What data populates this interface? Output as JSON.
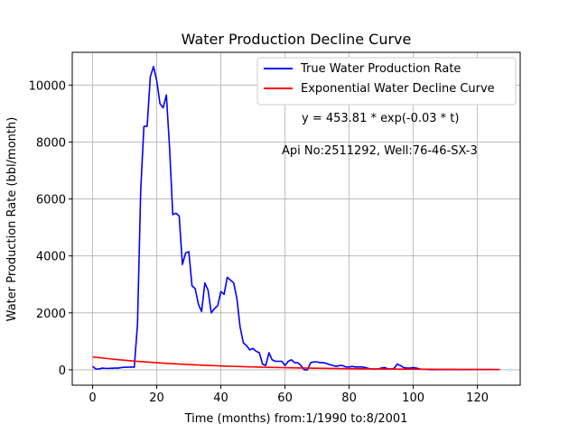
{
  "chart_data": {
    "type": "line",
    "title": "Water Production Decline Curve",
    "xlabel": "Time (months) from:1/1990 to:8/2001",
    "ylabel": "Water Production Rate (bbl/month)",
    "xlim": [
      -6.35,
      133.35
    ],
    "ylim": [
      -540,
      11150
    ],
    "xticks": [
      0,
      20,
      40,
      60,
      80,
      100,
      120
    ],
    "yticks": [
      0,
      2000,
      4000,
      6000,
      8000,
      10000
    ],
    "grid": true,
    "legend_position": "top-right",
    "annotations": [
      "y = 453.81 * exp(-0.03 * t)",
      "Api No:2511292, Well:76-46-SX-3"
    ],
    "series": [
      {
        "name": "True Water Production Rate",
        "color": "#0000ff",
        "points": [
          [
            0,
            120
          ],
          [
            1,
            30
          ],
          [
            2,
            30
          ],
          [
            3,
            60
          ],
          [
            4,
            50
          ],
          [
            5,
            50
          ],
          [
            6,
            55
          ],
          [
            7,
            60
          ],
          [
            8,
            60
          ],
          [
            9,
            80
          ],
          [
            10,
            90
          ],
          [
            11,
            90
          ],
          [
            12,
            100
          ],
          [
            13,
            90
          ],
          [
            14,
            1600
          ],
          [
            15,
            6300
          ],
          [
            16,
            8550
          ],
          [
            17,
            8550
          ],
          [
            18,
            10300
          ],
          [
            19,
            10650
          ],
          [
            20,
            10150
          ],
          [
            21,
            9350
          ],
          [
            22,
            9200
          ],
          [
            23,
            9650
          ],
          [
            24,
            7800
          ],
          [
            25,
            5450
          ],
          [
            26,
            5500
          ],
          [
            27,
            5400
          ],
          [
            28,
            3700
          ],
          [
            29,
            4100
          ],
          [
            30,
            4150
          ],
          [
            31,
            2950
          ],
          [
            32,
            2850
          ],
          [
            33,
            2300
          ],
          [
            34,
            2050
          ],
          [
            35,
            3050
          ],
          [
            36,
            2800
          ],
          [
            37,
            2000
          ],
          [
            38,
            2150
          ],
          [
            39,
            2250
          ],
          [
            40,
            2750
          ],
          [
            41,
            2650
          ],
          [
            42,
            3250
          ],
          [
            43,
            3150
          ],
          [
            44,
            3050
          ],
          [
            45,
            2500
          ],
          [
            46,
            1500
          ],
          [
            47,
            950
          ],
          [
            48,
            850
          ],
          [
            49,
            700
          ],
          [
            50,
            750
          ],
          [
            51,
            650
          ],
          [
            52,
            600
          ],
          [
            53,
            200
          ],
          [
            54,
            150
          ],
          [
            55,
            600
          ],
          [
            56,
            350
          ],
          [
            57,
            300
          ],
          [
            58,
            300
          ],
          [
            59,
            300
          ],
          [
            60,
            150
          ],
          [
            61,
            300
          ],
          [
            62,
            350
          ],
          [
            63,
            250
          ],
          [
            64,
            250
          ],
          [
            65,
            150
          ],
          [
            66,
            0
          ],
          [
            67,
            0
          ],
          [
            68,
            250
          ],
          [
            69,
            280
          ],
          [
            70,
            280
          ],
          [
            71,
            250
          ],
          [
            72,
            250
          ],
          [
            73,
            220
          ],
          [
            74,
            180
          ],
          [
            75,
            150
          ],
          [
            76,
            120
          ],
          [
            77,
            150
          ],
          [
            78,
            150
          ],
          [
            79,
            100
          ],
          [
            80,
            100
          ],
          [
            81,
            120
          ],
          [
            82,
            100
          ],
          [
            83,
            100
          ],
          [
            84,
            100
          ],
          [
            85,
            80
          ],
          [
            86,
            50
          ],
          [
            87,
            30
          ],
          [
            88,
            30
          ],
          [
            89,
            30
          ],
          [
            90,
            60
          ],
          [
            91,
            80
          ],
          [
            92,
            40
          ],
          [
            93,
            30
          ],
          [
            94,
            50
          ],
          [
            95,
            200
          ],
          [
            96,
            150
          ],
          [
            97,
            80
          ],
          [
            98,
            60
          ],
          [
            99,
            60
          ],
          [
            100,
            80
          ],
          [
            101,
            60
          ],
          [
            102,
            30
          ],
          [
            103,
            20
          ],
          [
            104,
            20
          ],
          [
            105,
            10
          ],
          [
            106,
            10
          ],
          [
            107,
            10
          ],
          [
            108,
            10
          ],
          [
            109,
            10
          ],
          [
            110,
            10
          ],
          [
            111,
            10
          ],
          [
            112,
            10
          ],
          [
            113,
            10
          ],
          [
            114,
            10
          ],
          [
            115,
            10
          ],
          [
            116,
            10
          ],
          [
            117,
            10
          ],
          [
            118,
            10
          ],
          [
            119,
            10
          ],
          [
            120,
            10
          ],
          [
            121,
            10
          ],
          [
            122,
            10
          ],
          [
            123,
            10
          ],
          [
            124,
            10
          ],
          [
            125,
            10
          ],
          [
            126,
            10
          ],
          [
            127,
            10
          ]
        ]
      },
      {
        "name": "Exponential Water Decline Curve",
        "color": "#ff0000",
        "equation": {
          "a": 453.81,
          "b": -0.03
        },
        "x_range": [
          0,
          127
        ]
      }
    ]
  }
}
